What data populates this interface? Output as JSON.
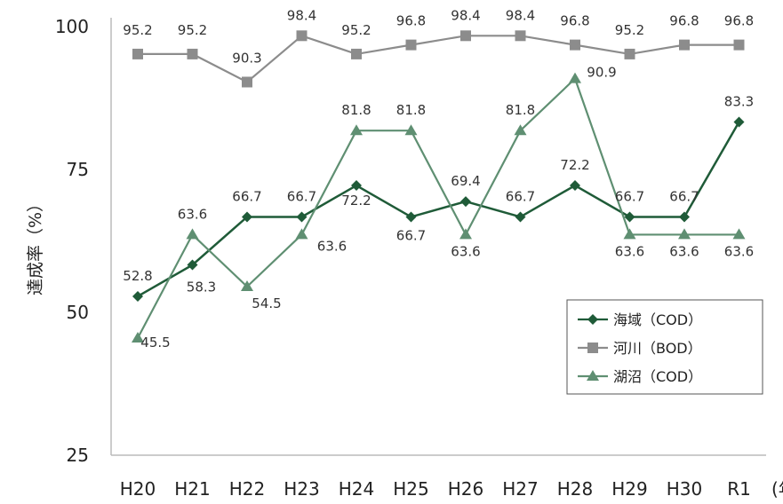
{
  "chart_data": {
    "type": "line",
    "categories": [
      "H20",
      "H21",
      "H22",
      "H23",
      "H24",
      "H25",
      "H26",
      "H27",
      "H28",
      "H29",
      "H30",
      "R1"
    ],
    "x_unit_partial": "(年",
    "ylabel": "達成率（%）",
    "ylim": [
      25,
      100
    ],
    "yticks": [
      25,
      50,
      75,
      100
    ],
    "grid": false,
    "legend_position": "bottom-right",
    "series": [
      {
        "name": "海域（COD）",
        "marker": "diamond",
        "color": "#1f5b38",
        "values": [
          52.8,
          58.3,
          66.7,
          66.7,
          72.2,
          66.7,
          69.4,
          66.7,
          72.2,
          66.7,
          66.7,
          83.3
        ],
        "labels": [
          "52.8",
          "58.3",
          "66.7",
          "66.7",
          "72.2",
          "66.7",
          "69.4",
          "66.7",
          "72.2",
          "66.7",
          "66.7",
          "83.3"
        ]
      },
      {
        "name": "河川（BOD）",
        "marker": "square",
        "color": "#8c8c8c",
        "values": [
          95.2,
          95.2,
          90.3,
          98.4,
          95.2,
          96.8,
          98.4,
          98.4,
          96.8,
          95.2,
          96.8,
          96.8
        ],
        "labels": [
          "95.2",
          "95.2",
          "90.3",
          "98.4",
          "95.2",
          "96.8",
          "98.4",
          "98.4",
          "96.8",
          "95.2",
          "96.8",
          "96.8"
        ]
      },
      {
        "name": "湖沼（COD）",
        "marker": "triangle",
        "color": "#5f8f72",
        "values": [
          45.5,
          63.6,
          54.5,
          63.6,
          81.8,
          81.8,
          63.6,
          81.8,
          90.9,
          63.6,
          63.6,
          63.6
        ],
        "labels": [
          "45.5",
          "63.6",
          "54.5",
          "63.6",
          "81.8",
          "81.8",
          "63.6",
          "81.8",
          "90.9",
          "63.6",
          "63.6",
          "63.6"
        ]
      }
    ]
  }
}
